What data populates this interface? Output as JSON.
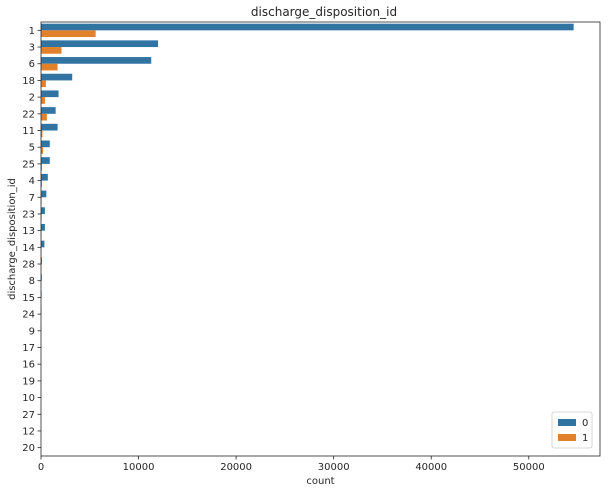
{
  "chart_data": {
    "type": "bar",
    "orientation": "horizontal",
    "title": "discharge_disposition_id",
    "xlabel": "count",
    "ylabel": "discharge_disposition_id",
    "xlim": [
      0,
      57300
    ],
    "xticks": [
      0,
      10000,
      20000,
      30000,
      40000,
      50000
    ],
    "categories": [
      "1",
      "3",
      "6",
      "18",
      "2",
      "22",
      "11",
      "5",
      "25",
      "4",
      "7",
      "23",
      "13",
      "14",
      "28",
      "8",
      "15",
      "24",
      "9",
      "17",
      "16",
      "19",
      "10",
      "27",
      "12",
      "20"
    ],
    "series": [
      {
        "name": "0",
        "color": "#3274a1",
        "values": [
          54600,
          12000,
          11300,
          3200,
          1800,
          1500,
          1700,
          900,
          900,
          700,
          550,
          400,
          400,
          350,
          100,
          80,
          60,
          40,
          20,
          15,
          10,
          8,
          5,
          5,
          3,
          2
        ]
      },
      {
        "name": "1",
        "color": "#e1812c",
        "values": [
          5600,
          2100,
          1700,
          500,
          400,
          600,
          150,
          200,
          100,
          100,
          60,
          60,
          50,
          30,
          40,
          20,
          10,
          10,
          5,
          5,
          3,
          2,
          2,
          2,
          1,
          1
        ]
      }
    ],
    "legend": {
      "title": "",
      "position": "lower-right",
      "entries": [
        "0",
        "1"
      ]
    },
    "grid": false
  }
}
